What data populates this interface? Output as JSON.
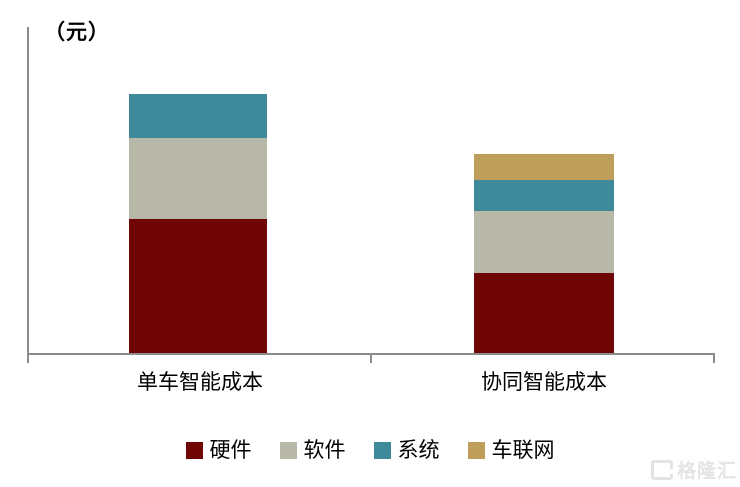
{
  "chart": {
    "unit_label": "（元）"
  },
  "chart_data": {
    "type": "bar",
    "stacked": true,
    "title": "",
    "unit": "元",
    "categories": [
      "单车智能成本",
      "协同智能成本"
    ],
    "series": [
      {
        "key": "hardware",
        "name": "硬件",
        "color": "#6F0505",
        "values": [
          52,
          31
        ]
      },
      {
        "key": "software",
        "name": "软件",
        "color": "#B8B8A9",
        "values": [
          31,
          24
        ]
      },
      {
        "key": "system",
        "name": "系统",
        "color": "#3E8A9B",
        "values": [
          17,
          12
        ]
      },
      {
        "key": "v2x",
        "name": "车联网",
        "color": "#BE9E5A",
        "values": [
          0,
          10
        ]
      }
    ],
    "ylim": [
      0,
      126
    ],
    "y_axis_labels_visible": false,
    "values_are_estimated_relative_units": true,
    "grid": false,
    "legend_position": "bottom",
    "axis_color": "#8C8C8C"
  },
  "watermark": {
    "logo": "G",
    "text": "格隆汇"
  }
}
